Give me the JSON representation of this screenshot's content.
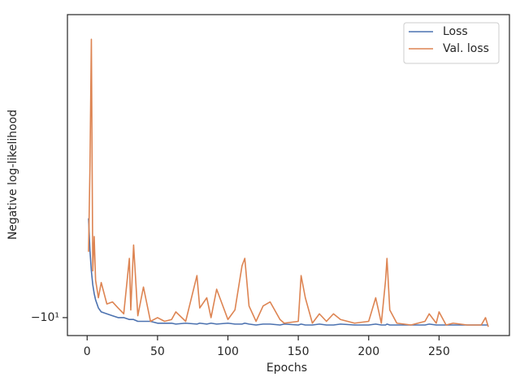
{
  "chart_data": {
    "type": "line",
    "xlabel": "Epochs",
    "ylabel": "Negative log-likelihood",
    "x": [
      1,
      2,
      3,
      4,
      5,
      6,
      8,
      10,
      14,
      18,
      22,
      26,
      30,
      31,
      33,
      36,
      40,
      45,
      50,
      55,
      60,
      63,
      70,
      78,
      80,
      85,
      88,
      92,
      100,
      105,
      110,
      112,
      115,
      120,
      125,
      130,
      137,
      140,
      150,
      152,
      155,
      160,
      165,
      170,
      175,
      180,
      190,
      200,
      205,
      209,
      212,
      213,
      215,
      220,
      230,
      240,
      243,
      248,
      250,
      255,
      260,
      270,
      280,
      283,
      285
    ],
    "series": [
      {
        "name": "Loss",
        "color": "#4c72b0",
        "values": [
          -5.9,
          -7.0,
          -7.8,
          -8.4,
          -8.8,
          -9.1,
          -9.5,
          -9.7,
          -9.8,
          -9.9,
          -10.0,
          -10.0,
          -10.1,
          -10.1,
          -10.1,
          -10.2,
          -10.2,
          -10.2,
          -10.3,
          -10.3,
          -10.3,
          -10.35,
          -10.3,
          -10.35,
          -10.3,
          -10.35,
          -10.3,
          -10.35,
          -10.3,
          -10.35,
          -10.35,
          -10.3,
          -10.35,
          -10.4,
          -10.35,
          -10.35,
          -10.4,
          -10.35,
          -10.4,
          -10.35,
          -10.4,
          -10.4,
          -10.35,
          -10.4,
          -10.4,
          -10.35,
          -10.4,
          -10.4,
          -10.35,
          -10.4,
          -10.4,
          -10.35,
          -10.4,
          -10.4,
          -10.4,
          -10.4,
          -10.35,
          -10.4,
          -10.4,
          -10.4,
          -10.4,
          -10.4,
          -10.4,
          -10.4,
          -10.4
        ]
      },
      {
        "name": "Val. loss",
        "color": "#dd8452",
        "values": [
          -7.05,
          -4.5,
          -2.28,
          -7.8,
          -6.5,
          -8.2,
          -9.0,
          -8.3,
          -9.3,
          -9.2,
          -9.5,
          -9.8,
          -7.3,
          -9.6,
          -6.8,
          -9.9,
          -8.5,
          -10.2,
          -10.0,
          -10.2,
          -10.1,
          -9.7,
          -10.2,
          -8.0,
          -9.5,
          -9.0,
          -10.0,
          -8.6,
          -10.1,
          -9.6,
          -7.6,
          -7.3,
          -9.4,
          -10.2,
          -9.4,
          -9.2,
          -10.1,
          -10.3,
          -10.2,
          -8.0,
          -9.0,
          -10.3,
          -9.8,
          -10.2,
          -9.8,
          -10.1,
          -10.3,
          -10.2,
          -9.0,
          -10.3,
          -8.2,
          -7.3,
          -9.6,
          -10.3,
          -10.4,
          -10.2,
          -9.8,
          -10.3,
          -9.7,
          -10.4,
          -10.3,
          -10.4,
          -10.4,
          -10.0,
          -10.5
        ]
      }
    ],
    "xlim": [
      -14,
      300
    ],
    "xticks": [
      0,
      50,
      100,
      150,
      200,
      250
    ],
    "ylim": [
      -11,
      -2
    ],
    "yticks": [
      {
        "value": -10,
        "label": "−10¹"
      }
    ],
    "yscale": "symlog",
    "legend": "upper right"
  }
}
